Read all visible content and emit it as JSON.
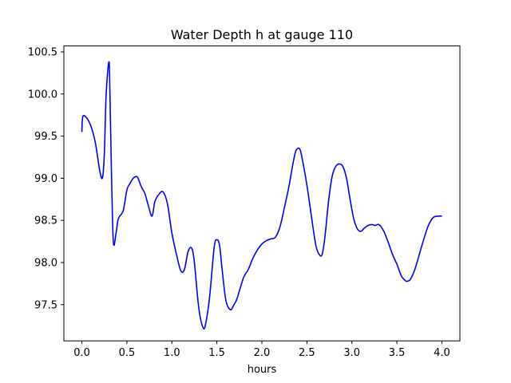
{
  "chart_data": {
    "type": "line",
    "title": "Water Depth h at gauge 110",
    "xlabel": "hours",
    "ylabel": "",
    "xlim": [
      -0.2,
      4.2
    ],
    "ylim": [
      97.07,
      100.57
    ],
    "xticks": [
      0.0,
      0.5,
      1.0,
      1.5,
      2.0,
      2.5,
      3.0,
      3.5,
      4.0
    ],
    "xtick_labels": [
      "0.0",
      "0.5",
      "1.0",
      "1.5",
      "2.0",
      "2.5",
      "3.0",
      "3.5",
      "4.0"
    ],
    "yticks": [
      97.5,
      98.0,
      98.5,
      99.0,
      99.5,
      100.0,
      100.5
    ],
    "ytick_labels": [
      "97.5",
      "98.0",
      "98.5",
      "99.0",
      "99.5",
      "100.0",
      "100.5"
    ],
    "grid": false,
    "series": [
      {
        "color": "#0000ff",
        "x": [
          0.0,
          0.01,
          0.05,
          0.1,
          0.15,
          0.2,
          0.23,
          0.25,
          0.27,
          0.3,
          0.31,
          0.33,
          0.35,
          0.38,
          0.4,
          0.42,
          0.46,
          0.5,
          0.53,
          0.57,
          0.6,
          0.62,
          0.66,
          0.7,
          0.74,
          0.78,
          0.81,
          0.85,
          0.9,
          0.95,
          1.0,
          1.05,
          1.1,
          1.14,
          1.18,
          1.22,
          1.25,
          1.3,
          1.35,
          1.38,
          1.42,
          1.47,
          1.5,
          1.53,
          1.56,
          1.6,
          1.65,
          1.69,
          1.72,
          1.76,
          1.8,
          1.85,
          1.9,
          1.95,
          2.0,
          2.05,
          2.1,
          2.15,
          2.2,
          2.25,
          2.3,
          2.35,
          2.38,
          2.42,
          2.45,
          2.5,
          2.55,
          2.6,
          2.64,
          2.67,
          2.7,
          2.74,
          2.78,
          2.82,
          2.86,
          2.9,
          2.94,
          2.98,
          3.02,
          3.06,
          3.1,
          3.14,
          3.18,
          3.22,
          3.26,
          3.3,
          3.35,
          3.4,
          3.45,
          3.5,
          3.55,
          3.6,
          3.62,
          3.65,
          3.7,
          3.75,
          3.8,
          3.85,
          3.9,
          3.95,
          4.0
        ],
        "values": [
          99.55,
          99.73,
          99.72,
          99.62,
          99.42,
          99.08,
          99.01,
          99.3,
          100.0,
          100.38,
          100.1,
          99.0,
          98.24,
          98.35,
          98.5,
          98.55,
          98.62,
          98.86,
          98.93,
          99.0,
          99.02,
          99.01,
          98.9,
          98.82,
          98.67,
          98.55,
          98.72,
          98.8,
          98.84,
          98.7,
          98.35,
          98.1,
          97.9,
          97.92,
          98.13,
          98.17,
          98.0,
          97.45,
          97.22,
          97.3,
          97.6,
          98.18,
          98.27,
          98.2,
          97.9,
          97.55,
          97.44,
          97.5,
          97.56,
          97.7,
          97.83,
          97.92,
          98.05,
          98.15,
          98.22,
          98.26,
          98.28,
          98.3,
          98.42,
          98.65,
          98.9,
          99.2,
          99.33,
          99.35,
          99.22,
          98.92,
          98.55,
          98.2,
          98.09,
          98.1,
          98.3,
          98.72,
          99.02,
          99.14,
          99.17,
          99.14,
          99.0,
          98.75,
          98.52,
          98.4,
          98.37,
          98.41,
          98.44,
          98.45,
          98.44,
          98.45,
          98.38,
          98.25,
          98.1,
          97.98,
          97.84,
          97.78,
          97.78,
          97.8,
          97.92,
          98.1,
          98.28,
          98.44,
          98.53,
          98.55,
          98.55
        ]
      }
    ]
  }
}
